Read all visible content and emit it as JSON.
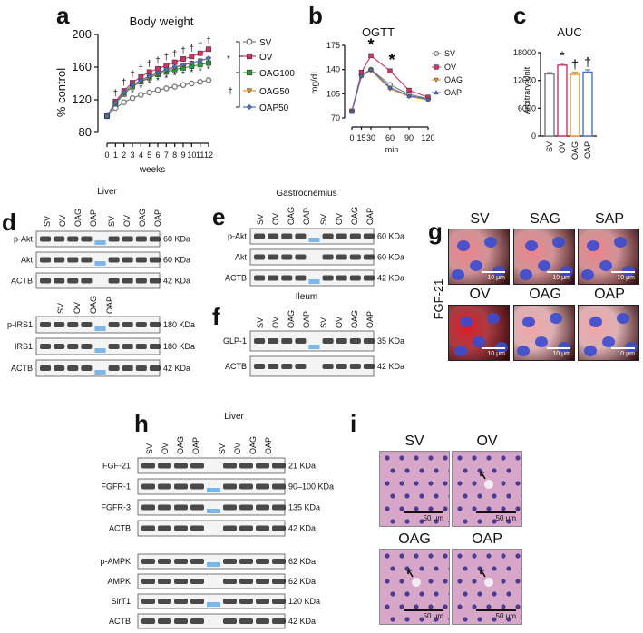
{
  "panels": {
    "a": "a",
    "b": "b",
    "c": "c",
    "d": "d",
    "e": "e",
    "f": "f",
    "g": "g",
    "h": "h",
    "i": "i"
  },
  "colors": {
    "SV": "#777777",
    "OV": "#cc3366",
    "OAG100": "#2e9a3a",
    "OAG50": "#e8912b",
    "OAP50": "#4a70c8",
    "OAG": "#e8912b",
    "OAP": "#4a70c8",
    "fgf_stain": "#c21418",
    "nuclei": "#3a4bd0",
    "he_bg": "#d7a6c8"
  },
  "chart_data": [
    {
      "type": "line",
      "title": "Body weight",
      "xlabel": "weeks",
      "ylabel": "% control",
      "ylim": [
        80,
        200
      ],
      "yticks": [
        "80",
        "120",
        "160",
        "200"
      ],
      "x": [
        0,
        1,
        2,
        3,
        4,
        5,
        6,
        7,
        8,
        9,
        10,
        11,
        12
      ],
      "xtick_labels": [
        "0",
        "1",
        "2",
        "3",
        "4",
        "5",
        "6",
        "7",
        "8",
        "9",
        "10",
        "11",
        "12"
      ],
      "series": [
        {
          "name": "SV",
          "values": [
            100,
            110,
            117,
            122,
            126,
            129,
            132,
            134,
            136,
            138,
            140,
            142,
            144
          ]
        },
        {
          "name": "OV",
          "values": [
            100,
            118,
            131,
            141,
            148,
            154,
            158,
            162,
            166,
            170,
            173,
            177,
            182
          ]
        },
        {
          "name": "OAG100",
          "values": [
            100,
            115,
            127,
            136,
            142,
            147,
            151,
            154,
            157,
            159,
            161,
            163,
            165
          ]
        },
        {
          "name": "OAG50",
          "values": [
            100,
            116,
            128,
            137,
            143,
            148,
            152,
            156,
            159,
            162,
            165,
            168,
            170
          ]
        },
        {
          "name": "OAP50",
          "values": [
            100,
            116,
            129,
            138,
            144,
            149,
            153,
            157,
            160,
            163,
            165,
            168,
            171
          ]
        }
      ],
      "annotations": {
        "dagger_marks": "†",
        "star_marks": "*",
        "bracket_star": "*",
        "bracket_dagger": "†"
      },
      "legend": "right"
    },
    {
      "type": "line",
      "title": "OGTT",
      "xlabel": "min",
      "ylabel": "mg/dL",
      "ylim": [
        70,
        175
      ],
      "yticks": [
        "70",
        "105",
        "140",
        "175"
      ],
      "x": [
        0,
        15,
        30,
        60,
        90,
        120
      ],
      "xtick_labels": [
        "0",
        "15",
        "30",
        "60",
        "90",
        "120"
      ],
      "series": [
        {
          "name": "SV",
          "values": [
            80,
            132,
            140,
            118,
            104,
            98
          ]
        },
        {
          "name": "OV",
          "values": [
            80,
            136,
            160,
            138,
            110,
            100
          ]
        },
        {
          "name": "OAG",
          "values": [
            79,
            130,
            139,
            112,
            101,
            96
          ]
        },
        {
          "name": "OAP",
          "values": [
            79,
            131,
            140,
            114,
            102,
            97
          ]
        }
      ],
      "annotations": {
        "star_30": "*",
        "star_60": "*"
      },
      "legend": "right"
    },
    {
      "type": "bar",
      "title": "AUC",
      "ylabel": "Arbitrary Unit",
      "ylim": [
        0,
        18000
      ],
      "yticks": [
        "0",
        "6000",
        "12000",
        "18000"
      ],
      "categories": [
        "SV",
        "OV",
        "OAG",
        "OAP"
      ],
      "values": [
        13400,
        15300,
        13300,
        13800
      ],
      "errors": [
        300,
        400,
        500,
        500
      ],
      "annotations": {
        "OV": "*",
        "OAG": "†",
        "OAP": "†"
      }
    }
  ],
  "blots": {
    "d": {
      "title": "Liver",
      "lanes": [
        "SV",
        "OV",
        "OAG",
        "OAP"
      ],
      "top_rows": [
        {
          "label": "p-Akt",
          "size": "60 KDa"
        },
        {
          "label": "Akt",
          "size": "60 KDa"
        },
        {
          "label": "ACTB",
          "size": "42 KDa"
        }
      ],
      "bottom_rows": [
        {
          "label": "p-IRS1",
          "size": "180 KDa"
        },
        {
          "label": "IRS1",
          "size": "180 KDa"
        },
        {
          "label": "ACTB",
          "size": "42 KDa"
        }
      ]
    },
    "e": {
      "title": "Gastrocnemius",
      "lanes": [
        "SV",
        "OV",
        "OAG",
        "OAP"
      ],
      "rows": [
        {
          "label": "p-Akt",
          "size": "60 KDa"
        },
        {
          "label": "Akt",
          "size": "60 KDa"
        },
        {
          "label": "ACTB",
          "size": "42 KDa"
        }
      ]
    },
    "f": {
      "title": "Ileum",
      "lanes": [
        "SV",
        "OV",
        "OAG",
        "OAP"
      ],
      "rows": [
        {
          "label": "GLP-1",
          "size": "35 KDa"
        },
        {
          "label": "ACTB",
          "size": "42 KDa"
        }
      ]
    },
    "h": {
      "title": "Liver",
      "lanes": [
        "SV",
        "OV",
        "OAG",
        "OAP"
      ],
      "top_rows": [
        {
          "label": "FGF-21",
          "size": "21 KDa"
        },
        {
          "label": "FGFR-1",
          "size": "90–100 KDa"
        },
        {
          "label": "FGFR-3",
          "size": "135 KDa"
        },
        {
          "label": "ACTB",
          "size": "42 KDa"
        }
      ],
      "bottom_rows": [
        {
          "label": "p-AMPK",
          "size": "62 KDa"
        },
        {
          "label": "AMPK",
          "size": "62 KDa"
        },
        {
          "label": "SirT1",
          "size": "120 KDa"
        },
        {
          "label": "ACTB",
          "size": "42 KDa"
        }
      ]
    }
  },
  "micrographs": {
    "g": {
      "ylabel": "FGF-21",
      "labels": [
        "SV",
        "SAG",
        "SAP",
        "OV",
        "OAG",
        "OAP"
      ],
      "scale": "10 μm"
    },
    "i": {
      "labels": [
        "SV",
        "OV",
        "OAG",
        "OAP"
      ],
      "scale": "50 μm"
    }
  }
}
